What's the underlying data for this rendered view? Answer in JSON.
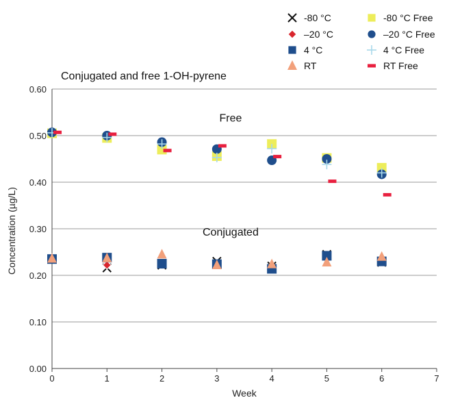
{
  "chart_data": {
    "type": "scatter",
    "title": "Conjugated and free 1-OH-pyrene",
    "xlabel": "Week",
    "ylabel": "Concentration (µg/L)",
    "xlim": [
      0,
      7
    ],
    "ylim": [
      0,
      0.6
    ],
    "xticks": [
      "0",
      "1",
      "2",
      "3",
      "4",
      "5",
      "6",
      "7"
    ],
    "yticks": [
      "0.00",
      "0.10",
      "0.20",
      "0.30",
      "0.40",
      "0.50",
      "0.60"
    ],
    "grid": "horizontal",
    "legend_position": "top-right",
    "annotations": [
      {
        "text": "Free",
        "x": 3.25,
        "y": 0.53
      },
      {
        "text": "Conjugated",
        "x": 3.25,
        "y": 0.285
      }
    ],
    "series": [
      {
        "name": "-80 °C",
        "marker": "x",
        "color": "#111111",
        "x": [
          0,
          1,
          2,
          3,
          4,
          5,
          6
        ],
        "y": [
          0.235,
          0.216,
          0.222,
          0.23,
          0.22,
          0.245,
          0.228
        ]
      },
      {
        "name": "–20 °C",
        "marker": "diamond",
        "color": "#d9262e",
        "x": [
          0,
          1,
          2,
          3,
          4,
          5,
          6
        ],
        "y": [
          0.235,
          0.222,
          0.222,
          0.224,
          0.218,
          0.24,
          0.233
        ]
      },
      {
        "name": "4 °C",
        "marker": "square",
        "color": "#1f4e8c",
        "x": [
          0,
          1,
          2,
          3,
          4,
          5,
          6
        ],
        "y": [
          0.235,
          0.238,
          0.225,
          0.224,
          0.214,
          0.242,
          0.23
        ]
      },
      {
        "name": "RT",
        "marker": "triangle",
        "color": "#f2a07b",
        "x": [
          0,
          1,
          2,
          3,
          4,
          5,
          6
        ],
        "y": [
          0.236,
          0.237,
          0.245,
          0.222,
          0.224,
          0.228,
          0.24
        ]
      },
      {
        "name": "-80 °C Free",
        "marker": "square",
        "color": "#eded5a",
        "x": [
          0,
          1,
          2,
          3,
          4,
          5,
          6
        ],
        "y": [
          0.505,
          0.495,
          0.47,
          0.456,
          0.482,
          0.452,
          0.431
        ]
      },
      {
        "name": "–20 °C Free",
        "marker": "circle",
        "color": "#1f4e8c",
        "x": [
          0,
          1,
          2,
          3,
          4,
          5,
          6
        ],
        "y": [
          0.507,
          0.5,
          0.486,
          0.471,
          0.447,
          0.45,
          0.417
        ]
      },
      {
        "name": "4 °C Free",
        "marker": "plus",
        "color": "#a8d8ea",
        "x": [
          0,
          1,
          2,
          3,
          4,
          5,
          6
        ],
        "y": [
          0.506,
          0.496,
          0.482,
          0.453,
          0.472,
          0.438,
          0.42
        ]
      },
      {
        "name": "RT Free",
        "marker": "dash",
        "color": "#e8203f",
        "x": [
          0.1,
          1.1,
          2.1,
          3.1,
          4.1,
          5.1,
          6.1
        ],
        "y": [
          0.507,
          0.503,
          0.468,
          0.478,
          0.455,
          0.402,
          0.373
        ]
      }
    ]
  }
}
